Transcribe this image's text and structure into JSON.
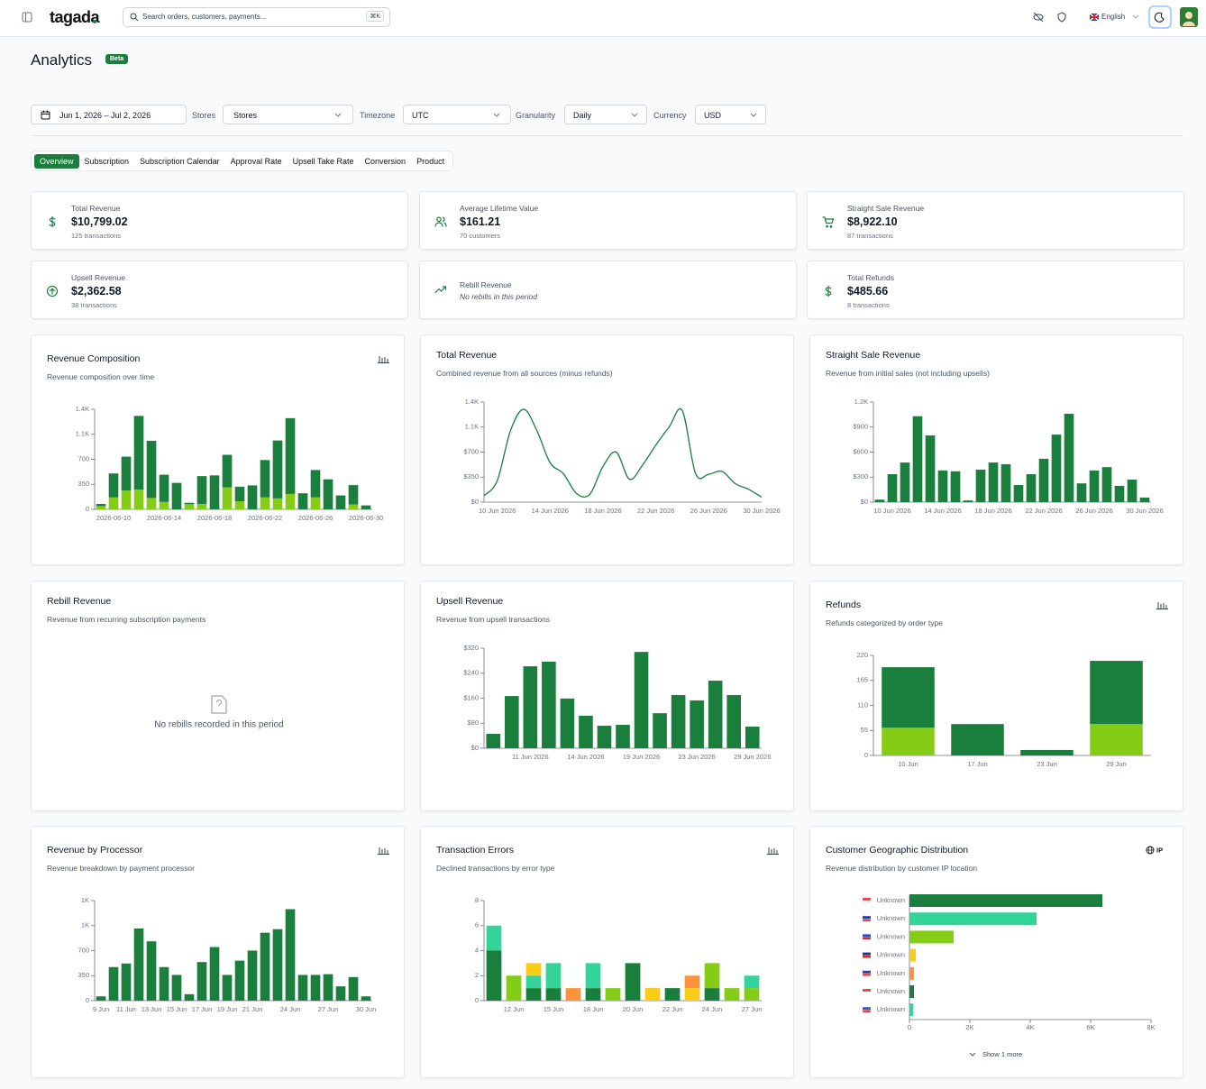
{
  "header": {
    "logo": "tagada",
    "search": "Search orders, customers, payments...",
    "shortcut": "⌘K",
    "language": "English"
  },
  "page": {
    "title": "Analytics",
    "badge": "Beta"
  },
  "filters": {
    "date_range": "Jun 1, 2026 – Jul 2, 2026",
    "stores_label": "Stores",
    "stores_value": "Stores",
    "timezone_label": "Timezone",
    "timezone_value": "UTC",
    "granularity_label": "Granularity",
    "granularity_value": "Daily",
    "currency_label": "Currency",
    "currency_value": "USD"
  },
  "tabs": [
    "Overview",
    "Subscription",
    "Subscription Calendar",
    "Approval Rate",
    "Upsell Take Rate",
    "Conversion",
    "Product"
  ],
  "stats": [
    {
      "label": "Total Revenue",
      "value": "$10,799.02",
      "note": "125 transactions"
    },
    {
      "label": "Average Lifetime Value",
      "value": "$161.21",
      "note": "70 customers"
    },
    {
      "label": "Straight Sale Revenue",
      "value": "$8,922.10",
      "note": "87 transactions"
    },
    {
      "label": "Upsell Revenue",
      "value": "$2,362.58",
      "note": "38 transactions"
    },
    {
      "label": "Rebill Revenue",
      "note": "No rebills in this period"
    },
    {
      "label": "Total Refunds",
      "value": "$485.66",
      "note": "8 transactions"
    }
  ],
  "chart_data": [
    {
      "type": "bar",
      "stacked": true,
      "title": "Revenue Composition",
      "subtitle": "Revenue composition over time",
      "categories": [
        null,
        "2026-06-10",
        null,
        null,
        null,
        "2026-06-14",
        null,
        null,
        null,
        "2026-06-18",
        null,
        null,
        null,
        "2026-06-22",
        null,
        null,
        null,
        "2026-06-26",
        null,
        null,
        null,
        "2026-06-30"
      ],
      "series": [
        {
          "color": "#84cc16",
          "values": [
            46,
            167,
            262,
            277,
            159,
            104,
            0,
            72,
            75,
            0,
            308,
            112,
            0,
            170,
            153,
            216,
            0,
            170,
            0,
            0,
            69,
            0
          ]
        },
        {
          "color": "#1a7f3c",
          "values": [
            30,
            335,
            475,
            1030,
            800,
            380,
            370,
            20,
            390,
            475,
            455,
            205,
            335,
            520,
            810,
            1060,
            225,
            380,
            420,
            195,
            270,
            55
          ]
        }
      ],
      "ylim": [
        0,
        1400
      ],
      "yticks": [
        0,
        350,
        700,
        {
          "value": 1050,
          "label": "1.1K"
        },
        {
          "value": 1400,
          "label": "1.4K"
        }
      ]
    },
    {
      "type": "line",
      "title": "Total Revenue",
      "subtitle": "Combined revenue from all sources (minus refunds)",
      "color": "#1a7f3c",
      "categories": [
        null,
        "10 Jun 2026",
        null,
        null,
        null,
        "14 Jun 2026",
        null,
        null,
        null,
        "18 Jun 2026",
        null,
        null,
        null,
        "22 Jun 2026",
        null,
        null,
        null,
        "26 Jun 2026",
        null,
        null,
        null,
        "30 Jun 2026"
      ],
      "values": [
        90,
        300,
        1000,
        1300,
        1000,
        550,
        400,
        120,
        110,
        500,
        700,
        320,
        520,
        800,
        1050,
        1280,
        400,
        390,
        430,
        260,
        180,
        70
      ],
      "ylim": [
        0,
        1400
      ],
      "yticks": [
        {
          "value": 0,
          "label": "$0"
        },
        {
          "value": 350,
          "label": "$350"
        },
        {
          "value": 700,
          "label": "$700"
        },
        {
          "value": 1050,
          "label": "1.1K"
        },
        {
          "value": 1400,
          "label": "1.4K"
        }
      ]
    },
    {
      "type": "bar",
      "title": "Straight Sale Revenue",
      "subtitle": "Revenue from initial sales (not including upsells)",
      "color": "#1a7f3c",
      "categories": [
        null,
        "10 Jun 2026",
        null,
        null,
        null,
        "14 Jun 2026",
        null,
        null,
        null,
        "18 Jun 2026",
        null,
        null,
        null,
        "22 Jun 2026",
        null,
        null,
        null,
        "26 Jun 2026",
        null,
        null,
        null,
        "30 Jun 2026"
      ],
      "values": [
        30,
        335,
        475,
        1030,
        800,
        380,
        370,
        20,
        390,
        475,
        455,
        205,
        335,
        520,
        810,
        1060,
        225,
        380,
        420,
        195,
        270,
        55
      ],
      "ylim": [
        0,
        1200
      ],
      "yticks": [
        {
          "value": 0,
          "label": "$0"
        },
        {
          "value": 300,
          "label": "$300"
        },
        {
          "value": 600,
          "label": "$600"
        },
        {
          "value": 900,
          "label": "$900"
        },
        {
          "value": 1200,
          "label": "1.2K"
        }
      ]
    },
    {
      "type": "empty",
      "title": "Rebill Revenue",
      "subtitle": "Revenue from recurring subscription payments",
      "message": "No rebills recorded in this period"
    },
    {
      "type": "bar",
      "title": "Upsell Revenue",
      "subtitle": "Revenue from upsell transactions",
      "color": "#1a7f3c",
      "categories": [
        null,
        null,
        "11 Jun 2026",
        null,
        null,
        "14 Jun 2026",
        null,
        null,
        "19 Jun 2026",
        null,
        null,
        "23 Jun 2026",
        null,
        null,
        "29 Jun 2026"
      ],
      "values": [
        46,
        167,
        262,
        277,
        159,
        104,
        72,
        75,
        308,
        112,
        170,
        153,
        216,
        170,
        69
      ],
      "ylim": [
        0,
        320
      ],
      "yticks": [
        {
          "value": 0,
          "label": "$0"
        },
        {
          "value": 80,
          "label": "$80"
        },
        {
          "value": 160,
          "label": "$160"
        },
        {
          "value": 240,
          "label": "$240"
        },
        {
          "value": 320,
          "label": "$320"
        }
      ]
    },
    {
      "type": "bar",
      "stacked": true,
      "title": "Refunds",
      "subtitle": "Refunds categorized by order type",
      "categories": [
        "10 Jun",
        "17 Jun",
        "23 Jun",
        "29 Jun"
      ],
      "series": [
        {
          "color": "#84cc16",
          "values": [
            61,
            0,
            0,
            69
          ]
        },
        {
          "color": "#1a7f3c",
          "values": [
            133,
            69,
            12,
            139
          ]
        }
      ],
      "ylim": [
        0,
        220
      ],
      "yticks": [
        0,
        55,
        110,
        165,
        220
      ]
    },
    {
      "type": "bar",
      "title": "Revenue by Processor",
      "subtitle": "Revenue breakdown by payment processor",
      "color": "#1a7f3c",
      "categories": [
        "9 Jun",
        null,
        "11 Jun",
        null,
        "13 Jun",
        null,
        "15 Jun",
        null,
        "17 Jun",
        null,
        "19 Jun",
        null,
        "21 Jun",
        null,
        null,
        "24 Jun",
        null,
        null,
        "27 Jun",
        null,
        null,
        "30 Jun"
      ],
      "values": [
        60,
        470,
        520,
        1010,
        830,
        470,
        360,
        90,
        540,
        750,
        360,
        560,
        700,
        950,
        1000,
        1280,
        360,
        360,
        370,
        200,
        330,
        60
      ],
      "ylim": [
        0,
        1400
      ],
      "yticks": [
        0,
        350,
        700,
        {
          "value": 1050,
          "label": "1K"
        },
        {
          "value": 1400,
          "label": "1K"
        }
      ]
    },
    {
      "type": "bar",
      "stacked": true,
      "title": "Transaction Errors",
      "subtitle": "Declined transactions by error type",
      "categories": [
        null,
        "12 Jun",
        null,
        "15 Jun",
        null,
        "18 Jun",
        null,
        "20 Jun",
        null,
        "22 Jun",
        null,
        "24 Jun",
        null,
        "27 Jun"
      ],
      "series": [
        {
          "color": "#1a7f3c",
          "values": [
            4,
            0,
            1,
            1,
            0,
            1,
            0,
            3,
            0,
            1,
            0,
            1,
            0,
            0
          ]
        },
        {
          "color": "#84cc16",
          "values": [
            0,
            2,
            0,
            0,
            0,
            0,
            1,
            0,
            0,
            0,
            0,
            2,
            1,
            1
          ]
        },
        {
          "color": "#34d399",
          "values": [
            2,
            0,
            1,
            2,
            0,
            2,
            0,
            0,
            0,
            0,
            0,
            0,
            0,
            1
          ]
        },
        {
          "color": "#facc15",
          "values": [
            0,
            0,
            1,
            0,
            0,
            0,
            0,
            0,
            1,
            0,
            1,
            0,
            0,
            0
          ]
        },
        {
          "color": "#fb923c",
          "values": [
            0,
            0,
            0,
            0,
            1,
            0,
            0,
            0,
            0,
            0,
            1,
            0,
            0,
            0
          ]
        }
      ],
      "ylim": [
        0,
        8
      ],
      "yticks": [
        0,
        2,
        4,
        6,
        8
      ]
    },
    {
      "type": "hbar",
      "title": "Customer Geographic Distribution",
      "subtitle": "Revenue distribution by customer IP location",
      "badge": "IP",
      "more": "Show 1 more",
      "categories": [
        "Unknown",
        "Unknown",
        "Unknown",
        "Unknown",
        "Unknown",
        "Unknown",
        "Unknown"
      ],
      "values": [
        6390,
        4210,
        1460,
        210,
        150,
        150,
        120
      ],
      "colors": [
        "#1a7f3c",
        "#34d399",
        "#84cc16",
        "#facc15",
        "#fb923c",
        "#1a7f3c",
        "#34d399"
      ],
      "xlim": [
        0,
        8000
      ],
      "xticks": [
        0,
        {
          "value": 2000,
          "label": "2K"
        },
        {
          "value": 4000,
          "label": "4K"
        },
        {
          "value": 6000,
          "label": "6K"
        },
        {
          "value": 8000,
          "label": "8K"
        }
      ]
    }
  ]
}
